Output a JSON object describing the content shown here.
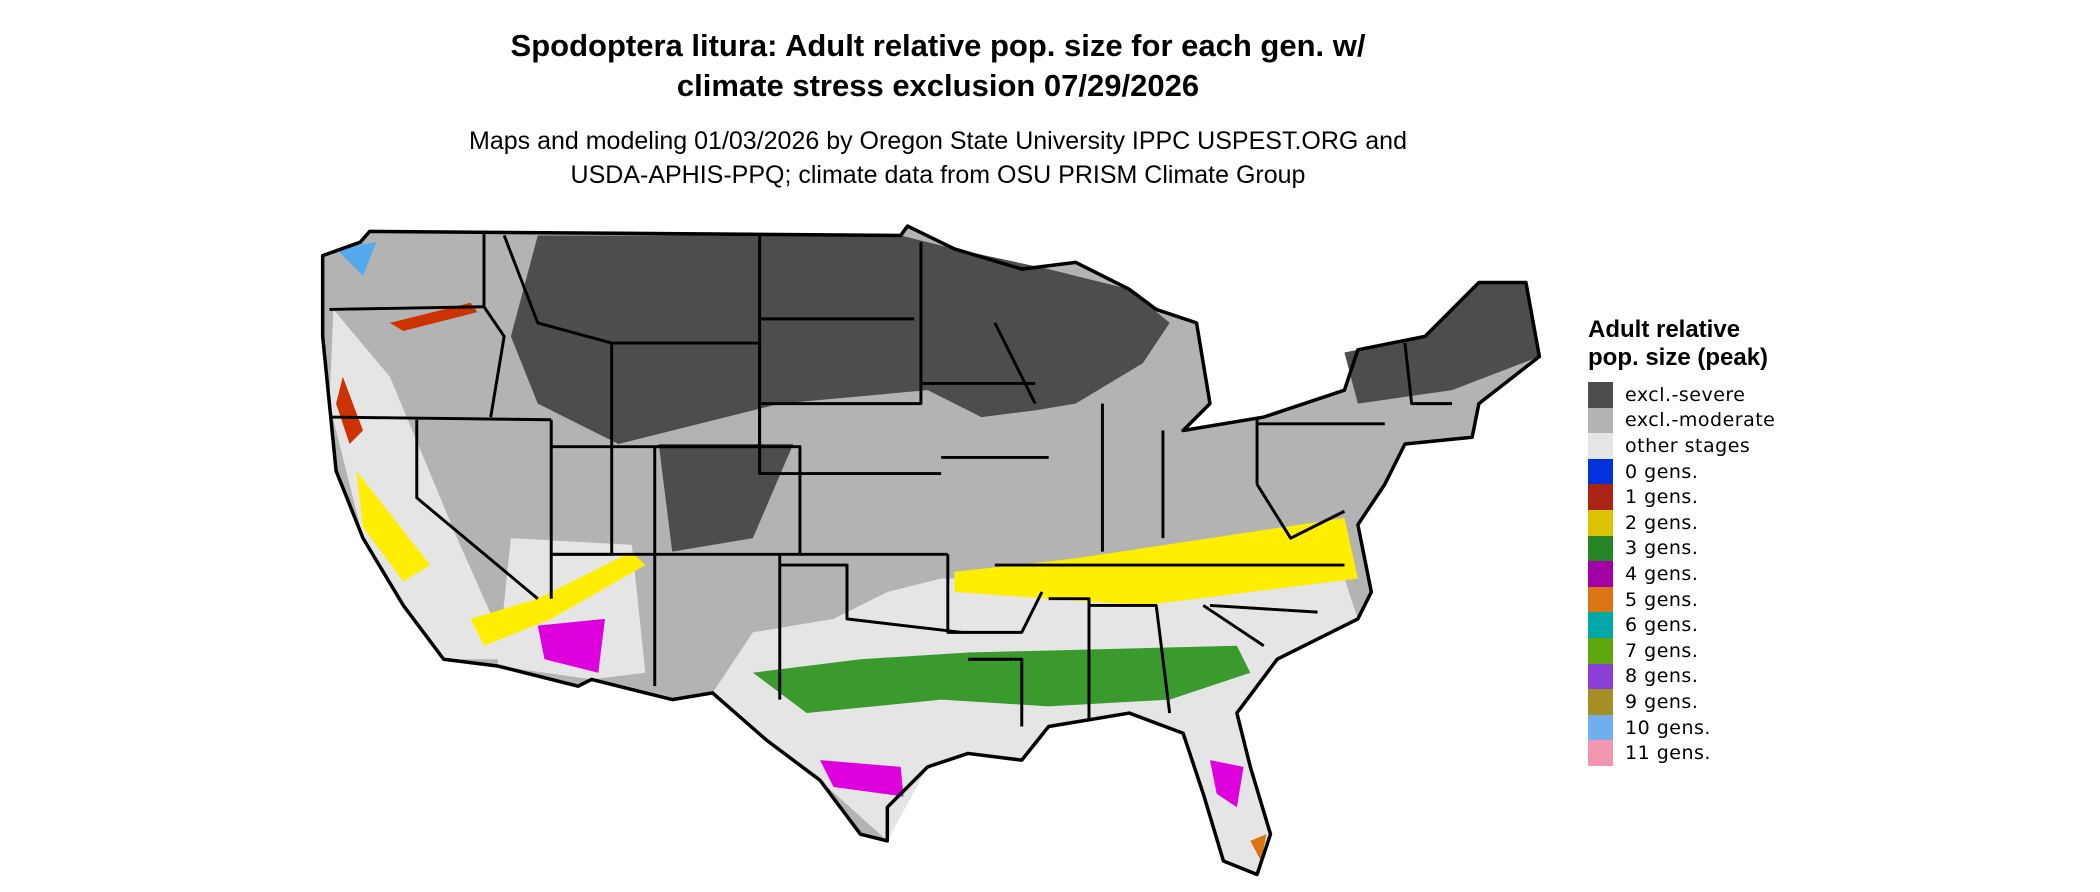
{
  "title_line1": "Spodoptera litura: Adult relative pop. size for each gen. w/",
  "title_line2": "climate stress exclusion 07/29/2026",
  "subtitle_line1": "Maps and modeling 01/03/2026 by Oregon State University IPPC USPEST.ORG and",
  "subtitle_line2": "USDA-APHIS-PPQ; climate data from OSU PRISM Climate Group",
  "legend": {
    "title": "Adult relative pop. size (peak)",
    "items": [
      {
        "label": "excl.-severe",
        "color": "#4d4d4d"
      },
      {
        "label": "excl.-moderate",
        "color": "#b3b3b3"
      },
      {
        "label": "other stages",
        "color": "#e5e5e5"
      },
      {
        "label": "0 gens.",
        "color": "#0033dd"
      },
      {
        "label": "1 gens.",
        "color": "#aa2314"
      },
      {
        "label": "2 gens.",
        "color": "#dcc400"
      },
      {
        "label": "3 gens.",
        "color": "#258426"
      },
      {
        "label": "4 gens.",
        "color": "#a300a6"
      },
      {
        "label": "5 gens.",
        "color": "#dc7414"
      },
      {
        "label": "6 gens.",
        "color": "#00a8a8"
      },
      {
        "label": "7 gens.",
        "color": "#5fa60f"
      },
      {
        "label": "8 gens.",
        "color": "#8a3ed6"
      },
      {
        "label": "9 gens.",
        "color": "#a38f23"
      },
      {
        "label": "10 gens.",
        "color": "#72aeee"
      },
      {
        "label": "11 gens.",
        "color": "#f197b2"
      }
    ]
  },
  "map_colors": {
    "severe": "#4d4d4d",
    "moderate": "#b3b3b3",
    "other": "#e5e5e5",
    "yellow": "#ffee00",
    "green": "#3a9a2e",
    "magenta": "#dd00dd",
    "red": "#cc3300",
    "blue": "#55aaee",
    "orange": "#dc7414"
  }
}
